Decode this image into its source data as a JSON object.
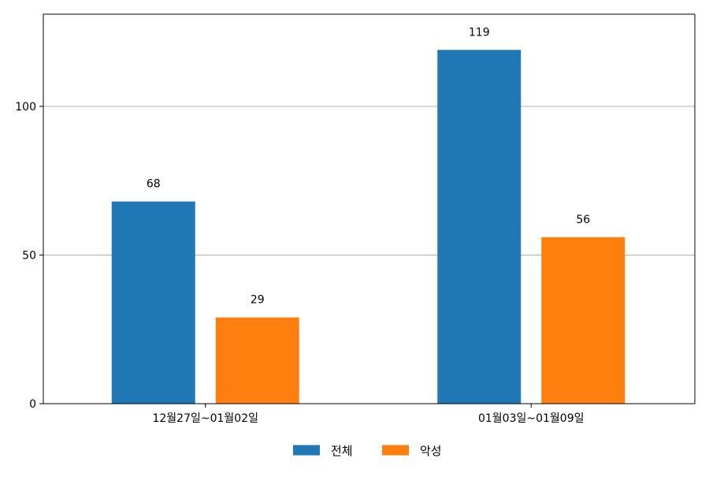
{
  "chart_data": {
    "type": "bar",
    "categories": [
      "12월27일~01월02일",
      "01월03일~01월09일"
    ],
    "series": [
      {
        "name": "전체",
        "values": [
          68,
          119
        ],
        "color": "#1f77b4"
      },
      {
        "name": "악성",
        "values": [
          29,
          56
        ],
        "color": "#ff7f0e"
      }
    ],
    "title": "",
    "xlabel": "",
    "ylabel": "",
    "ylim": [
      0,
      131
    ],
    "yticks": [
      0,
      50,
      100
    ],
    "grid": "horizontal",
    "legend_position": "bottom-center",
    "show_data_labels": true
  }
}
